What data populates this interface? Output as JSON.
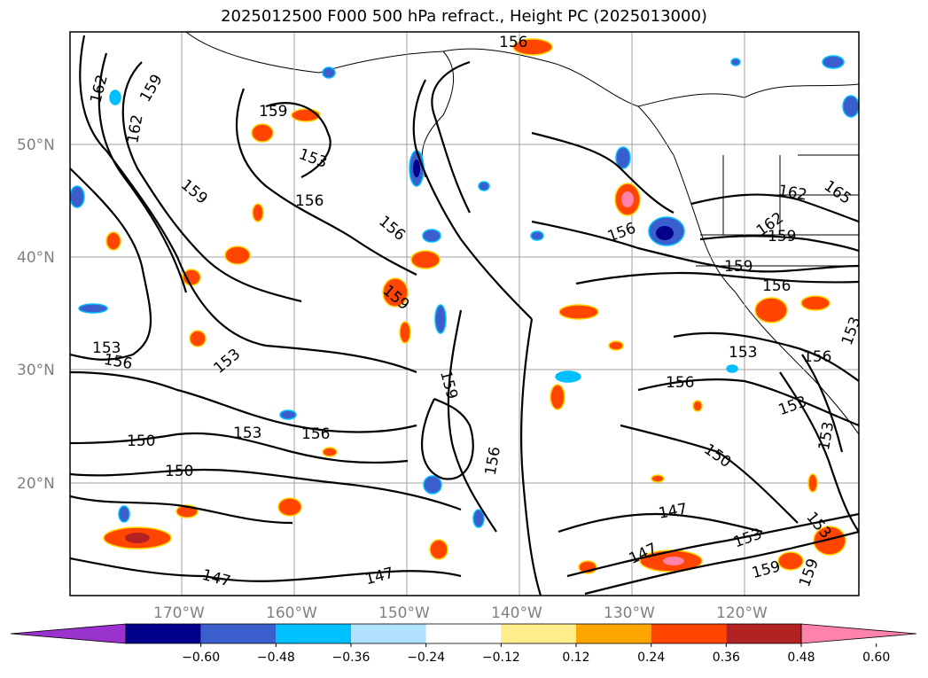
{
  "title": "2025012500 F000 500 hPa refract., Height PC (2025013000)",
  "lat_labels": [
    "50°N",
    "40°N",
    "30°N",
    "20°N"
  ],
  "lon_labels": [
    "170°W",
    "160°W",
    "150°W",
    "140°W",
    "130°W",
    "120°W"
  ],
  "colorbar": {
    "colors": [
      "#9a32cd",
      "#00008b",
      "#3a5fcd",
      "#00bfff",
      "#b0e2ff",
      "#ffffff",
      "#ffec8b",
      "#ffa500",
      "#ff4500",
      "#b22222",
      "#ff82ab"
    ],
    "ticks": [
      "−0.60",
      "−0.48",
      "−0.36",
      "−0.24",
      "−0.12",
      "0.12",
      "0.24",
      "0.36",
      "0.48",
      "0.60"
    ]
  },
  "contour_labels": [
    "162",
    "159",
    "162",
    "159",
    "159",
    "153",
    "156",
    "156",
    "156",
    "159",
    "162",
    "165",
    "162",
    "159",
    "159",
    "156",
    "153",
    "156",
    "153",
    "156",
    "153",
    "153",
    "159",
    "153",
    "150",
    "156",
    "153",
    "156",
    "150",
    "150",
    "147",
    "147",
    "147",
    "147",
    "153",
    "159",
    "159",
    "153",
    "156",
    "153",
    "156"
  ]
}
